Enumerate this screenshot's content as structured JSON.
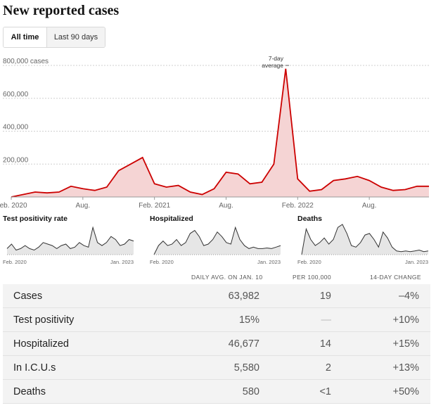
{
  "title": "New reported cases",
  "toggle": {
    "all_time": "All time",
    "last_90": "Last 90 days"
  },
  "main_chart": {
    "y_ticks": [
      "800,000 cases",
      "600,000",
      "400,000",
      "200,000"
    ],
    "x_ticks": [
      "Feb. 2020",
      "Aug.",
      "Feb. 2021",
      "Aug.",
      "Feb. 2022",
      "Aug."
    ],
    "annotation": [
      "7-day",
      "average"
    ],
    "line_color": "#cc0000",
    "fill_color": "#f5d4d4"
  },
  "chart_data": {
    "type": "area",
    "title": "New reported cases",
    "series": [
      {
        "name": "7-day average",
        "x": [
          "2020-02",
          "2020-03",
          "2020-04",
          "2020-05",
          "2020-06",
          "2020-07",
          "2020-08",
          "2020-09",
          "2020-10",
          "2020-11",
          "2020-12",
          "2021-01",
          "2021-02",
          "2021-03",
          "2021-04",
          "2021-05",
          "2021-06",
          "2021-07",
          "2021-08",
          "2021-09",
          "2021-10",
          "2021-11",
          "2021-12",
          "2022-01",
          "2022-02",
          "2022-03",
          "2022-04",
          "2022-05",
          "2022-06",
          "2022-07",
          "2022-08",
          "2022-09",
          "2022-10",
          "2022-11",
          "2022-12",
          "2023-01"
        ],
        "values": [
          0,
          15000,
          30000,
          25000,
          30000,
          65000,
          50000,
          40000,
          60000,
          160000,
          200000,
          240000,
          80000,
          60000,
          70000,
          30000,
          15000,
          50000,
          150000,
          140000,
          80000,
          90000,
          200000,
          780000,
          110000,
          35000,
          45000,
          100000,
          110000,
          125000,
          100000,
          60000,
          40000,
          45000,
          65000,
          65000
        ]
      }
    ],
    "ylim": [
      0,
      800000
    ]
  },
  "sparklines": [
    {
      "title": "Test positivity rate",
      "x_start": "Feb. 2020",
      "x_end": "Jan. 2023",
      "values": [
        0.2,
        0.35,
        0.15,
        0.2,
        0.3,
        0.2,
        0.15,
        0.25,
        0.4,
        0.35,
        0.3,
        0.2,
        0.3,
        0.35,
        0.2,
        0.25,
        0.4,
        0.3,
        0.25,
        0.9,
        0.4,
        0.3,
        0.4,
        0.6,
        0.5,
        0.3,
        0.35,
        0.5,
        0.45
      ]
    },
    {
      "title": "Hospitalized",
      "x_start": "Feb. 2020",
      "x_end": "Jan. 2023",
      "values": [
        0,
        0.3,
        0.45,
        0.3,
        0.35,
        0.5,
        0.3,
        0.4,
        0.7,
        0.8,
        0.6,
        0.3,
        0.35,
        0.5,
        0.75,
        0.6,
        0.4,
        0.35,
        0.9,
        0.5,
        0.3,
        0.2,
        0.25,
        0.2,
        0.2,
        0.22,
        0.2,
        0.25,
        0.3
      ]
    },
    {
      "title": "Deaths",
      "x_start": "Feb. 2020",
      "x_end": "Jan. 2023",
      "values": [
        0,
        0.85,
        0.5,
        0.3,
        0.4,
        0.55,
        0.35,
        0.5,
        0.9,
        1.0,
        0.7,
        0.3,
        0.25,
        0.4,
        0.65,
        0.7,
        0.5,
        0.25,
        0.75,
        0.55,
        0.25,
        0.12,
        0.1,
        0.12,
        0.1,
        0.12,
        0.15,
        0.1,
        0.12
      ]
    }
  ],
  "table": {
    "headers": {
      "avg": "DAILY AVG. ON JAN. 10",
      "per": "PER 100,000",
      "chg": "14-DAY CHANGE"
    },
    "rows": [
      {
        "name": "Cases",
        "avg": "63,982",
        "per": "19",
        "chg": "–4%"
      },
      {
        "name": "Test positivity",
        "avg": "15%",
        "per": "—",
        "chg": "+10%"
      },
      {
        "name": "Hospitalized",
        "avg": "46,677",
        "per": "14",
        "chg": "+15%"
      },
      {
        "name": "In I.C.U.s",
        "avg": "5,580",
        "per": "2",
        "chg": "+13%"
      },
      {
        "name": "Deaths",
        "avg": "580",
        "per": "<1",
        "chg": "+50%"
      }
    ]
  }
}
